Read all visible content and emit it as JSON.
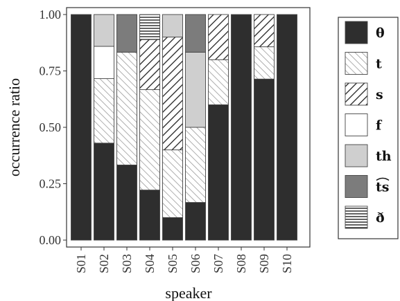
{
  "chart_data": {
    "type": "bar",
    "stacked": true,
    "categories": [
      "S01",
      "S02",
      "S03",
      "S04",
      "S05",
      "S06",
      "S07",
      "S08",
      "S09",
      "S10"
    ],
    "series": [
      {
        "name": "θ",
        "pattern": "solid-dark",
        "color": "#2e2e2e",
        "values": [
          1.0,
          0.43,
          0.333,
          0.222,
          0.1,
          0.167,
          0.6,
          1.0,
          0.714,
          1.0
        ]
      },
      {
        "name": "t",
        "pattern": "diagonal-light",
        "color": "#bbbbbb",
        "values": [
          0,
          0.286,
          0.5,
          0.445,
          0.3,
          0.333,
          0.2,
          0,
          0.143,
          0
        ]
      },
      {
        "name": "s",
        "pattern": "diagonal-dark",
        "color": "#2e2e2e",
        "values": [
          0,
          0,
          0,
          0.222,
          0.5,
          0,
          0.2,
          0,
          0.143,
          0
        ]
      },
      {
        "name": "f",
        "pattern": "white",
        "color": "#ffffff",
        "values": [
          0,
          0.143,
          0,
          0,
          0,
          0,
          0,
          0,
          0,
          0
        ]
      },
      {
        "name": "th",
        "pattern": "solid-light",
        "color": "#cfcfcf",
        "values": [
          0,
          0.141,
          0,
          0,
          0.1,
          0.333,
          0,
          0,
          0,
          0
        ]
      },
      {
        "name": "ts",
        "pattern": "solid-mid",
        "color": "#7c7c7c",
        "values": [
          0,
          0,
          0.167,
          0,
          0,
          0.167,
          0,
          0,
          0,
          0
        ]
      },
      {
        "name": "ð",
        "pattern": "horizontal-lines",
        "color": "#2e2e2e",
        "values": [
          0,
          0,
          0,
          0.111,
          0,
          0,
          0,
          0,
          0,
          0
        ]
      }
    ],
    "xlabel": "speaker",
    "ylabel": "occurrence ratio",
    "ylim": [
      0,
      1
    ],
    "yticks": [
      "0.00",
      "0.25",
      "0.50",
      "0.75",
      "1.00"
    ],
    "grid": false,
    "legend_position": "right"
  }
}
